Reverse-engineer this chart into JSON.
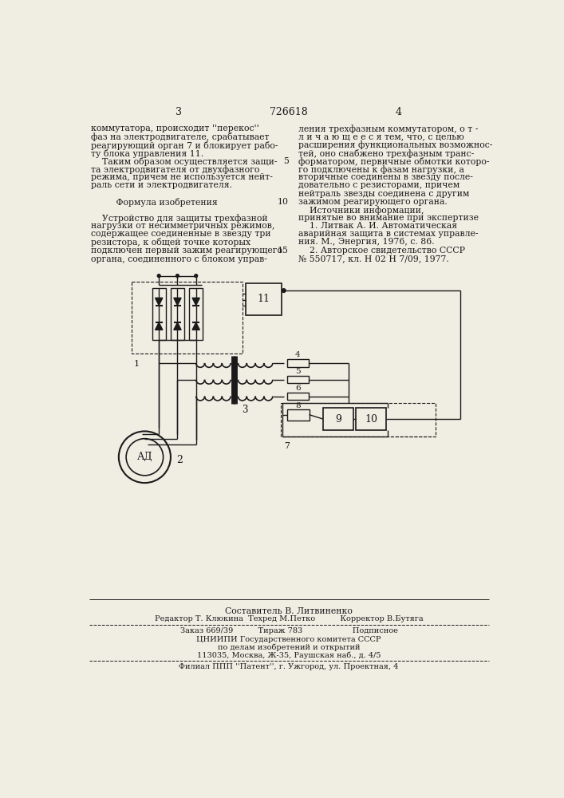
{
  "page_color": "#f0ede3",
  "text_color": "#1a1a1a",
  "page_num_left": "3",
  "patent_num": "726618",
  "page_num_right": "4",
  "col_left_text": [
    "коммутатора, происходит ''перекос''",
    "фаз на электродвигателе, срабатывает",
    "реагирующий орган 7 и блокирует рабо-",
    "ту блока управления 11.",
    "    Таким образом осуществляется защи-",
    "та электродвигателя от двухфазного",
    "режима, причем не используется нейт-",
    "раль сети и электродвигателя.",
    "",
    "         Формула изобретения",
    "",
    "    Устройство для защиты трехфазной",
    "нагрузки от несимметричных режимов,",
    "содержащее соединенные в звезду три",
    "резистора, к общей точке которых",
    "подключен первый зажим реагирующего",
    "органа, соединенного с блоком управ-"
  ],
  "col_right_text": [
    "ления трехфазным коммутатором, о т -",
    "л и ч а ю щ е е с я тем, что, с целью",
    "расширения функциональных возможнос-",
    "тей, оно снабжено трехфазным транс-",
    "форматором, первичные обмотки которо-",
    "го подключены к фазам нагрузки, а",
    "вторичные соединены в звезду после-",
    "довательно с резисторами, причем",
    "нейтраль звезды соединена с другим",
    "зажимом реагирующего органа.",
    "    Источники информации,",
    "принятые во внимание при экспертизе",
    "    1. Литвак А. И. Автоматическая",
    "аварийная защита в системах управле-",
    "ния. М., Энергия, 1976, с. 86.",
    "    2. Авторское свидетельство СССР",
    "№ 550717, кл. Н 02 Н 7/09, 1977."
  ],
  "right_line_numbers": {
    "4": "5",
    "9": "10",
    "15": "15"
  },
  "footer_composer": "Составитель В. Литвиненко",
  "footer_editors": "Редактор Т. Клюкина  Техред М.Петко          Корректор В.Бутяга",
  "footer_order": "Заказ 669/39          Тираж 783                    Подписное",
  "footer_inst1": "ЦНИИПИ Государственного комитета СССР",
  "footer_inst2": "по делам изобретений и открытий",
  "footer_addr": "113035, Москва, Ж-35, Раушская наб., д. 4/5",
  "footer_branch": "Филиал ППП ''Патент'', г. Ужгород, ул. Проектная, 4"
}
